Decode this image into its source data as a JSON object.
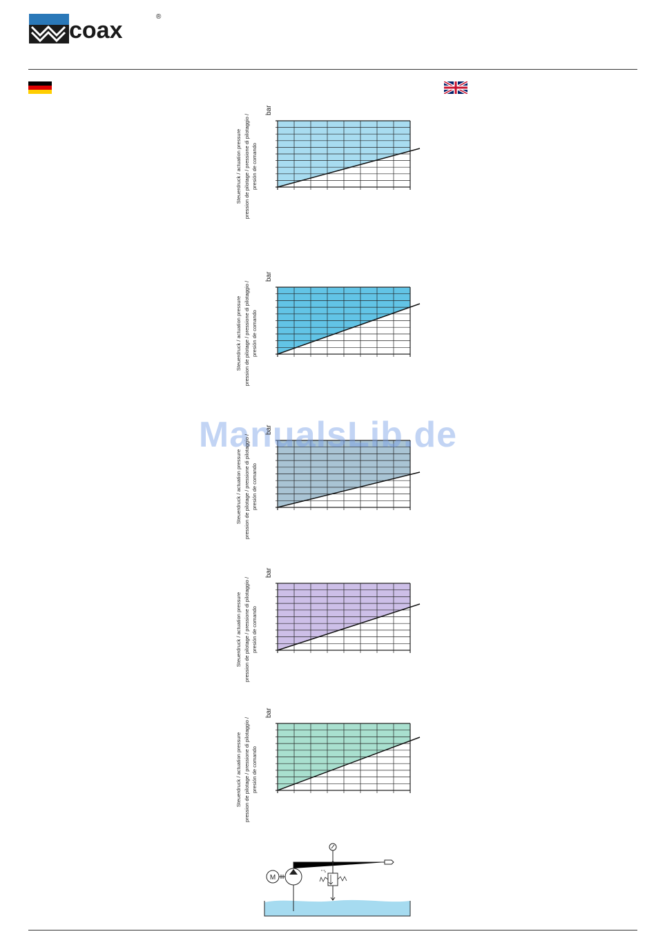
{
  "header": {
    "brand": "coax",
    "registered": "®"
  },
  "flags": {
    "left": "German flag",
    "right": "UK flag"
  },
  "charts": [
    {
      "fill": "#a8dcf0",
      "unit": "bar",
      "ylabel": "Steuerdruck / actuation pressure\npression de pilotage / pressione di pilotaggio /\npresión de comando"
    },
    {
      "fill": "#62c4e6",
      "unit": "bar",
      "ylabel": "Steuerdruck / actuation pressure\npression de pilotage / pressione di pilotaggio /\npresión de comando"
    },
    {
      "fill": "#a9c4d4",
      "unit": "bar",
      "ylabel": "Steuerdruck / actuation pressure\npression de pilotage / pressione di pilotaggio /\npresión de comando"
    },
    {
      "fill": "#cdbfe8",
      "unit": "bar",
      "ylabel": "Steuerdruck / actuation pressure\npression de pilotage / pressione di pilotaggio /\npresión de comando"
    },
    {
      "fill": "#a9e0cf",
      "unit": "bar",
      "ylabel": "Steuerdruck / actuation pressure\npression de pilotage / pressione di pilotaggio /\npresión de comando"
    }
  ],
  "circuit": {
    "motor_label": "M",
    "tank_color": "#a6dbf0"
  },
  "watermark": "ManualsLib.de"
}
